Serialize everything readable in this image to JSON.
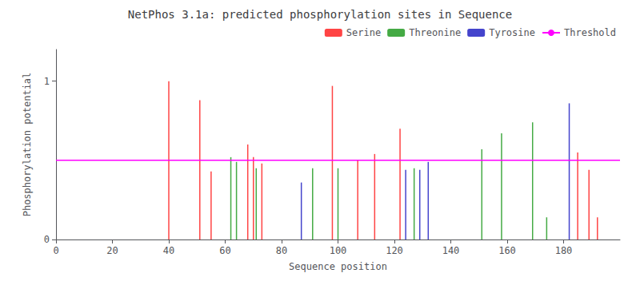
{
  "chart_data": {
    "type": "stem",
    "title": "NetPhos 3.1a: predicted phosphorylation sites in Sequence",
    "x_label": "Sequence position",
    "y_label": "Phosphorylation potential",
    "xlim": [
      0,
      200
    ],
    "ylim": [
      0,
      1.2
    ],
    "xticks": [
      0,
      20,
      40,
      60,
      80,
      100,
      120,
      140,
      160,
      180
    ],
    "yticks": [
      0,
      1
    ],
    "grid": false,
    "legend": "upper right",
    "series": [
      {
        "name": "Serine",
        "type": "stem",
        "color": "#ff4444",
        "x": [
          40,
          51,
          55,
          68,
          70,
          73,
          98,
          107,
          113,
          122,
          185,
          189,
          192
        ],
        "values": [
          1.0,
          0.88,
          0.43,
          0.6,
          0.52,
          0.48,
          0.97,
          0.5,
          0.54,
          0.7,
          0.55,
          0.44,
          0.14
        ]
      },
      {
        "name": "Threonine",
        "type": "stem",
        "color": "#44aa44",
        "x": [
          62,
          64,
          71,
          91,
          100,
          127,
          151,
          158,
          169,
          174
        ],
        "values": [
          0.52,
          0.49,
          0.45,
          0.45,
          0.45,
          0.45,
          0.57,
          0.67,
          0.74,
          0.14
        ]
      },
      {
        "name": "Tyrosine",
        "type": "stem",
        "color": "#4444cc",
        "x": [
          87,
          124,
          129,
          132,
          182
        ],
        "values": [
          0.36,
          0.44,
          0.44,
          0.49,
          0.86
        ]
      },
      {
        "name": "Threshold",
        "type": "hline",
        "color": "#ff00ff",
        "values": [
          0.5
        ]
      }
    ]
  }
}
